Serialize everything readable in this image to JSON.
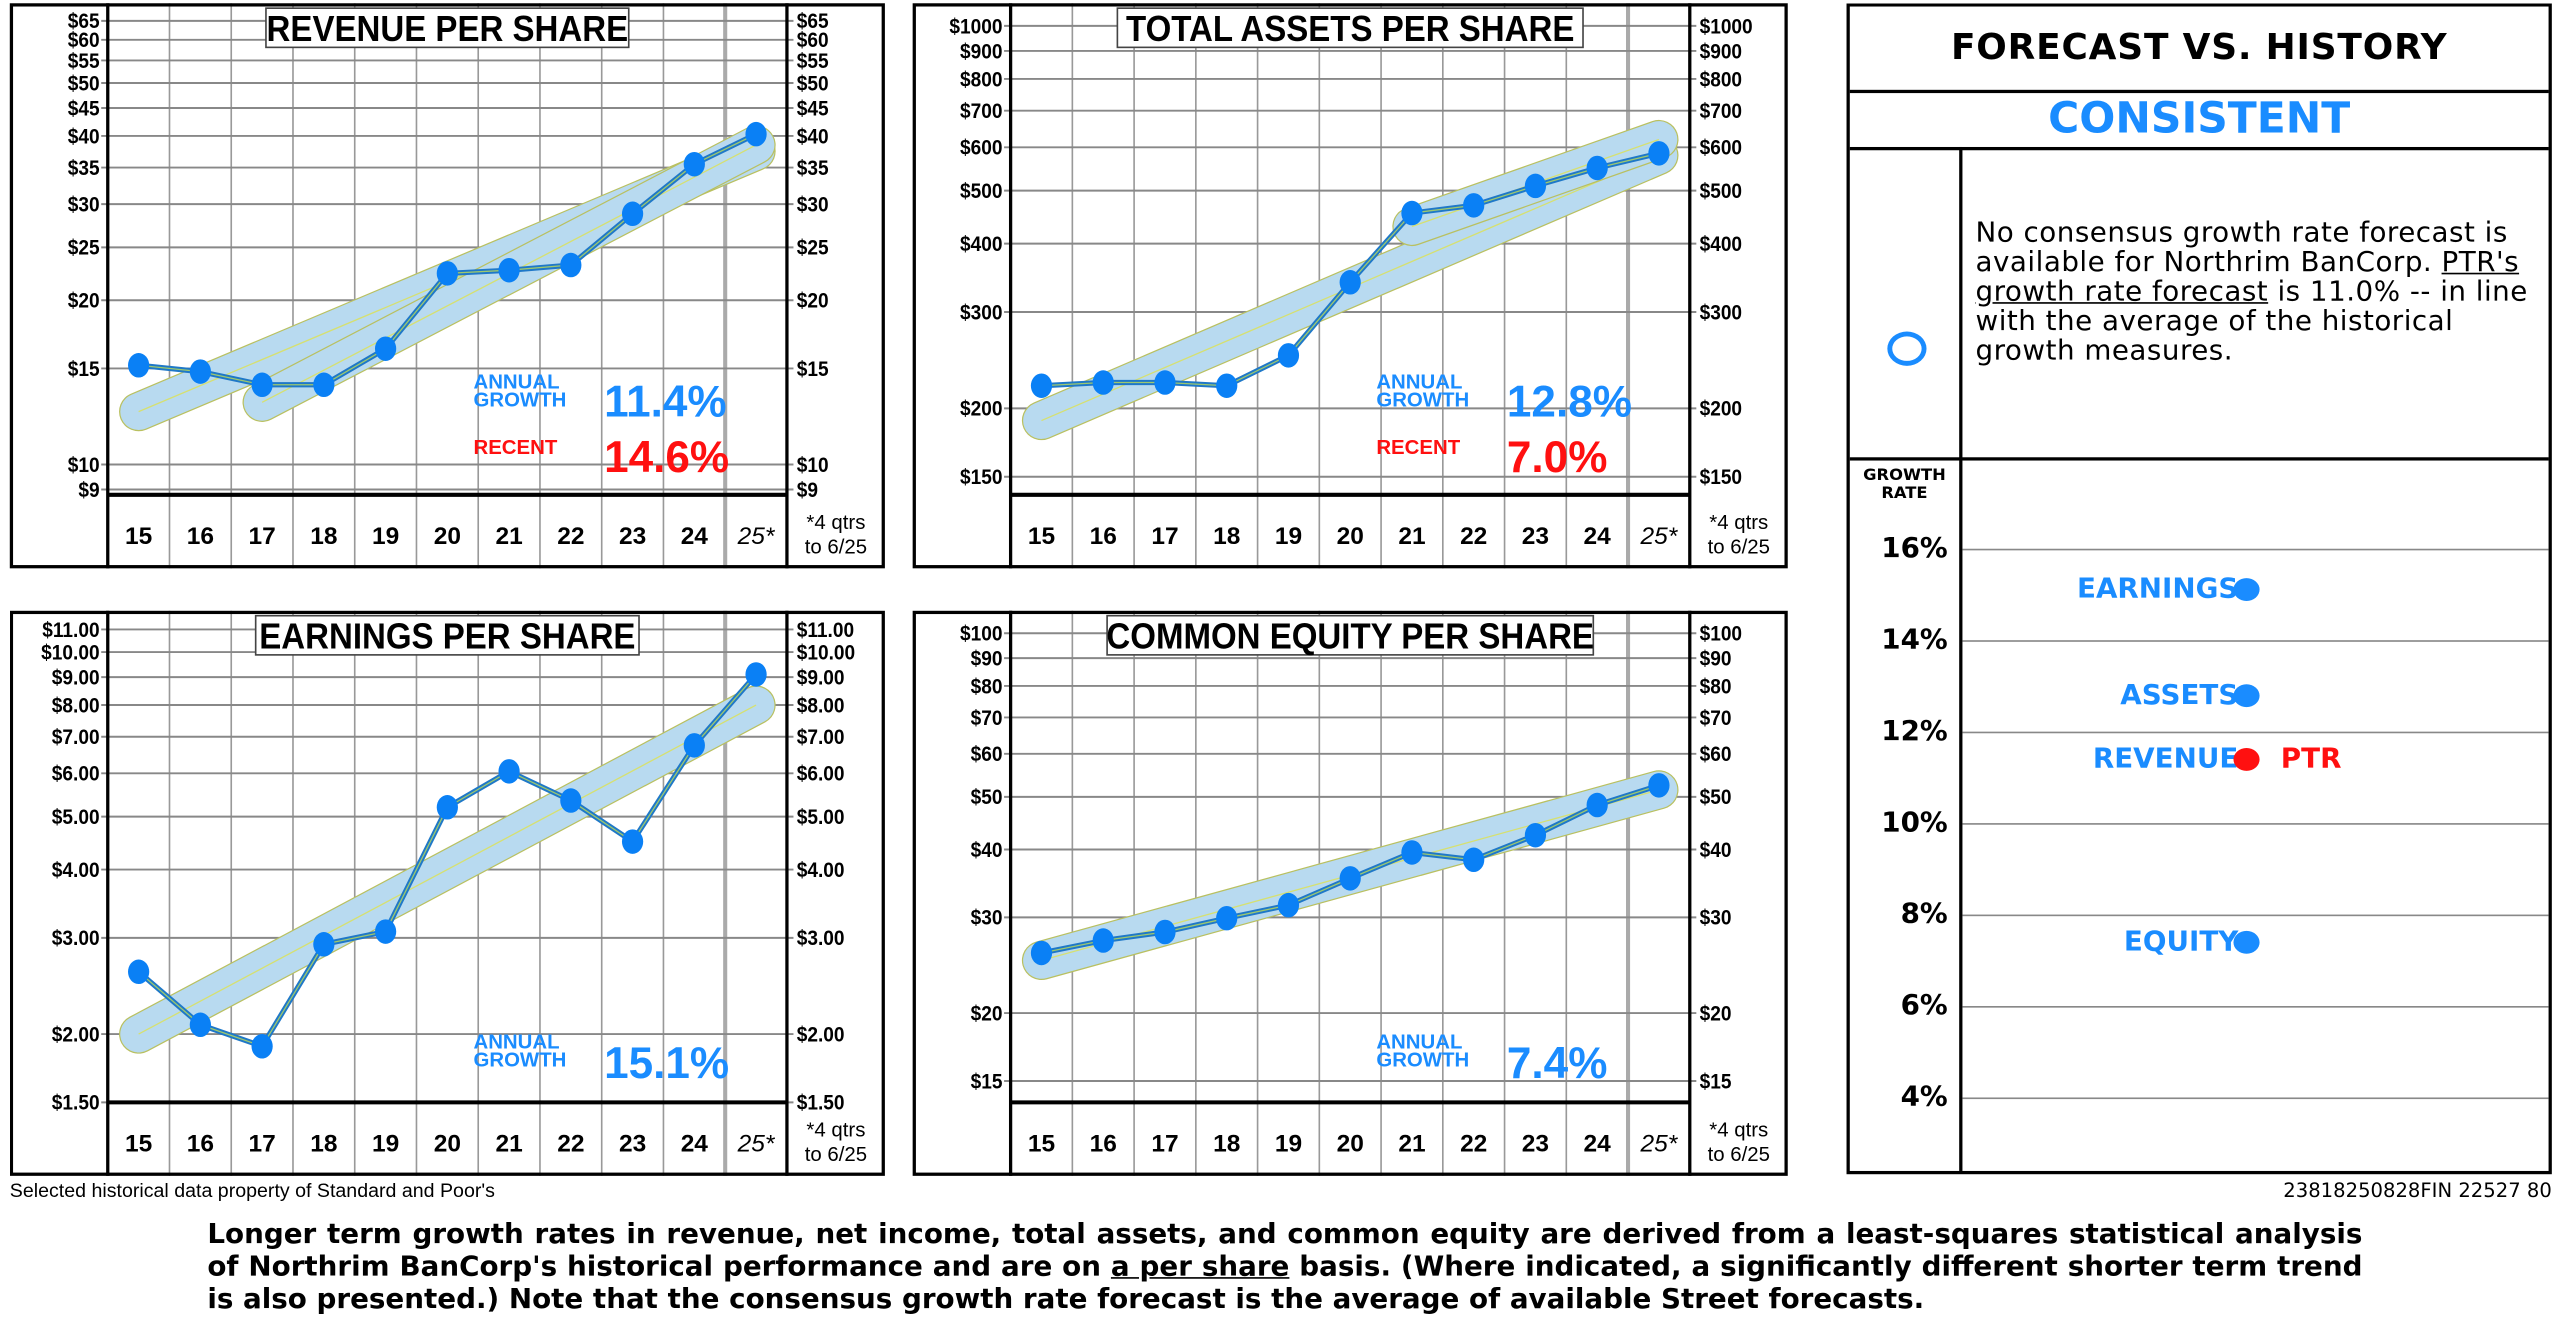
{
  "chart_data": [
    {
      "type": "line",
      "title": "REVENUE PER SHARE",
      "scale": "log",
      "categories": [
        "15",
        "16",
        "17",
        "18",
        "19",
        "20",
        "21",
        "22",
        "23",
        "24",
        "25*"
      ],
      "values": [
        15.2,
        14.8,
        14.0,
        14.0,
        16.3,
        22.4,
        22.7,
        23.2,
        28.8,
        35.5,
        40.3
      ],
      "ylim": [
        8.8,
        70
      ],
      "yticks": [
        9,
        10,
        15,
        20,
        25,
        30,
        35,
        40,
        45,
        50,
        55,
        60,
        65
      ],
      "ytick_labels": [
        "$9",
        "$10",
        "$15",
        "$20",
        "$25",
        "$30",
        "$35",
        "$40",
        "$45",
        "$50",
        "$55",
        "$60",
        "$65"
      ],
      "trend_bands": [
        {
          "from": [
            "15",
            12.5
          ],
          "to": [
            "25*",
            37.5
          ]
        },
        {
          "from": [
            "17",
            13.0
          ],
          "to": [
            "25*",
            38.5
          ]
        }
      ],
      "annual_label": [
        "ANNUAL",
        "GROWTH"
      ],
      "annual_growth": "11.4%",
      "recent_label": "RECENT",
      "recent_growth": "14.6%",
      "note": [
        "*4 qtrs",
        "to 6/25"
      ]
    },
    {
      "type": "line",
      "title": "TOTAL ASSETS PER SHARE",
      "scale": "log",
      "categories": [
        "15",
        "16",
        "17",
        "18",
        "19",
        "20",
        "21",
        "22",
        "23",
        "24",
        "25*"
      ],
      "values": [
        220,
        223,
        223,
        220,
        250,
        340,
        455,
        470,
        510,
        550,
        585
      ],
      "ylim": [
        139,
        1100
      ],
      "yticks": [
        150,
        200,
        300,
        400,
        500,
        600,
        700,
        800,
        900,
        1000
      ],
      "ytick_labels": [
        "$150",
        "$200",
        "$300",
        "$400",
        "$500",
        "$600",
        "$700",
        "$800",
        "$900",
        "$1000"
      ],
      "trend_bands": [
        {
          "from": [
            "15",
            190
          ],
          "to": [
            "25*",
            580
          ]
        },
        {
          "from": [
            "21",
            430
          ],
          "to": [
            "25*",
            620
          ]
        }
      ],
      "annual_label": [
        "ANNUAL",
        "GROWTH"
      ],
      "annual_growth": "12.8%",
      "recent_label": "RECENT",
      "recent_growth": "7.0%",
      "note": [
        "*4 qtrs",
        "to 6/25"
      ]
    },
    {
      "type": "line",
      "title": "EARNINGS PER SHARE",
      "scale": "log",
      "categories": [
        "15",
        "16",
        "17",
        "18",
        "19",
        "20",
        "21",
        "22",
        "23",
        "24",
        "25*"
      ],
      "values": [
        2.6,
        2.08,
        1.9,
        2.92,
        3.08,
        5.2,
        6.05,
        5.35,
        4.5,
        6.75,
        9.1
      ],
      "ylim": [
        1.5,
        11.9
      ],
      "yticks": [
        1.5,
        2,
        3,
        4,
        5,
        6,
        7,
        8,
        9,
        10,
        11
      ],
      "ytick_labels": [
        "$1.50",
        "$2.00",
        "$3.00",
        "$4.00",
        "$5.00",
        "$6.00",
        "$7.00",
        "$8.00",
        "$9.00",
        "$10.00",
        "$11.00"
      ],
      "trend_bands": [
        {
          "from": [
            "15",
            2.0
          ],
          "to": [
            "25*",
            8.0
          ]
        }
      ],
      "annual_label": [
        "ANNUAL",
        "GROWTH"
      ],
      "annual_growth": "15.1%",
      "note": [
        "*4 qtrs",
        "to 6/25"
      ]
    },
    {
      "type": "line",
      "title": "COMMON EQUITY PER SHARE",
      "scale": "log",
      "categories": [
        "15",
        "16",
        "17",
        "18",
        "19",
        "20",
        "21",
        "22",
        "23",
        "24",
        "25*"
      ],
      "values": [
        25.8,
        27.2,
        28.2,
        29.9,
        31.6,
        35.4,
        39.5,
        38.3,
        42.5,
        48.3,
        52.5
      ],
      "ylim": [
        13.7,
        110
      ],
      "yticks": [
        15,
        20,
        30,
        40,
        50,
        60,
        70,
        80,
        90,
        100
      ],
      "ytick_labels": [
        "$15",
        "$20",
        "$30",
        "$40",
        "$50",
        "$60",
        "$70",
        "$80",
        "$90",
        "$100"
      ],
      "trend_bands": [
        {
          "from": [
            "15",
            25.0
          ],
          "to": [
            "25*",
            51.5
          ]
        }
      ],
      "annual_label": [
        "ANNUAL",
        "GROWTH"
      ],
      "annual_growth": "7.4%",
      "note": [
        "*4 qtrs",
        "to 6/25"
      ]
    }
  ],
  "panel": {
    "title": "FORECAST VS. HISTORY",
    "verdict": "CONSISTENT",
    "text_1": "No consensus growth rate forecast is available for Northrim BanCorp. ",
    "text_link": "PTR's growth rate forecast",
    "text_2": " is 11.0% --  in line with the average of the historical growth measures.",
    "growth_head": [
      "GROWTH",
      "RATE"
    ],
    "growth_ticks": [
      16,
      14,
      12,
      10,
      8,
      6,
      4
    ],
    "growth_tick_labels": [
      "16%",
      "14%",
      "12%",
      "10%",
      "8%",
      "6%",
      "4%"
    ],
    "markers": [
      {
        "label": "EARNINGS",
        "value": 15.1,
        "color": "#1a8cff"
      },
      {
        "label": "ASSETS",
        "value": 12.8,
        "color": "#1a8cff"
      },
      {
        "label": "REVENUE",
        "value": 11.4,
        "color": "#ff1010",
        "tag": "PTR"
      },
      {
        "label": "EQUITY",
        "value": 7.4,
        "color": "#1a8cff"
      }
    ]
  },
  "footer": {
    "source": "Selected historical data property of Standard and Poor's",
    "code": "23818250828FIN 22527  80",
    "text_1": "Longer term growth rates in revenue, net income, total assets, and common equity are derived from a least-squares statistical analysis of Northrim BanCorp's historical performance and are on ",
    "text_link": "a per share",
    "text_2": " basis. (Where indicated, a significantly different shorter term trend is also presented.) Note that the consensus growth rate forecast is the average of available Street forecasts."
  },
  "colors": {
    "accent_blue": "#1a8cff",
    "recent_red": "#ff1010",
    "band": "#b8dcf8",
    "line": "#1f78c8"
  }
}
